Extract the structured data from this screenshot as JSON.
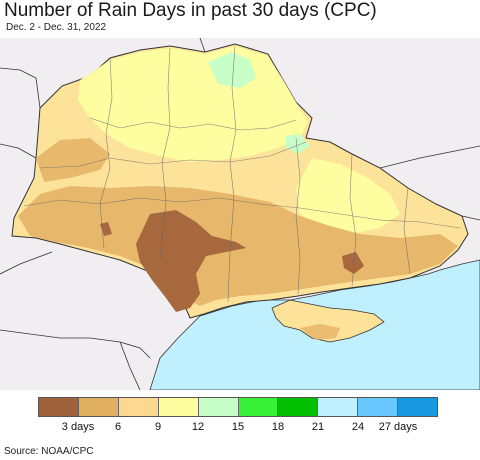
{
  "header": {
    "title": "Number of Rain Days in past 30 days (CPC)",
    "subtitle": "Dec. 2 - Dec. 31, 2022"
  },
  "legend": {
    "colors": [
      "#a0623a",
      "#e0b060",
      "#fdd890",
      "#fefea0",
      "#c8fec8",
      "#38f038",
      "#00c000",
      "#c0f0fe",
      "#68c8fe",
      "#1898e0"
    ],
    "labels": [
      {
        "text": "3 days",
        "boundary": 1
      },
      {
        "text": "6",
        "boundary": 2
      },
      {
        "text": "9",
        "boundary": 3
      },
      {
        "text": "12",
        "boundary": 4
      },
      {
        "text": "15",
        "boundary": 5
      },
      {
        "text": "18",
        "boundary": 6
      },
      {
        "text": "21",
        "boundary": 7
      },
      {
        "text": "24",
        "boundary": 8
      },
      {
        "text": "27 days",
        "boundary": 9
      }
    ]
  },
  "map": {
    "colors": {
      "outside_land": "#f0eef0",
      "sea": "#c0f0fe",
      "border": "#333333",
      "oblast_line": "#666666"
    }
  },
  "footer": {
    "source": "Source: NOAA/CPC"
  }
}
